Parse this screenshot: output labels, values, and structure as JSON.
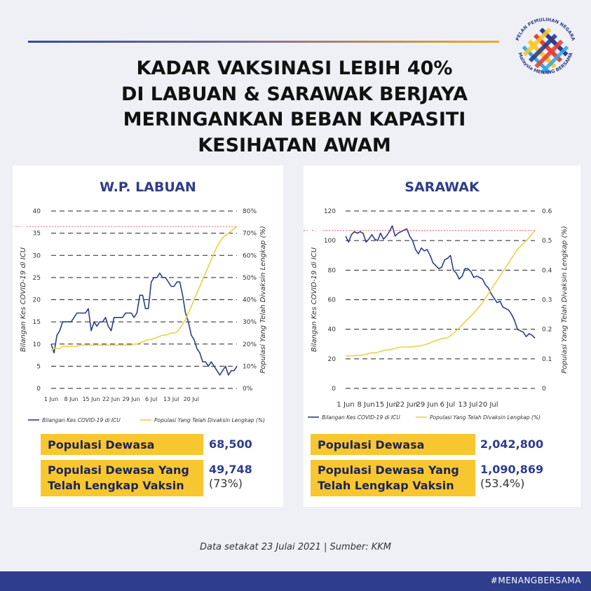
{
  "title_lines": [
    "KADAR VAKSINASI LEBIH 40%",
    "DI LABUAN & SARAWAK BERJAYA",
    "MERINGANKAN BEBAN KAPASITI",
    "KESIHATAN AWAM"
  ],
  "logo": {
    "text_top": "PELAN PEMULIHAN NEGARA",
    "text_bottom": "Malaysia MENANG BERSAMA",
    "colors": [
      "#2e3d8c",
      "#e8403a",
      "#f8c72f",
      "#37a9e1"
    ]
  },
  "colors": {
    "blue": "#2e3d8c",
    "yellow": "#f8c72f",
    "line_yellow": "#e9d24a",
    "accent_line": "#f0a92a"
  },
  "footer": "Data setakat 23 Julai 2021  |  Sumber: KKM",
  "hashtag": "#MENANGBERSAMA",
  "left": {
    "title": "W.P. LABUAN",
    "stats": [
      {
        "label": "Populasi Dewasa",
        "value": "68,500",
        "pct": ""
      },
      {
        "label_lines": [
          "Populasi Dewasa Yang",
          "Telah Lengkap Vaksin"
        ],
        "value": "49,748",
        "pct": "(73%)"
      }
    ]
  },
  "right": {
    "title": "SARAWAK",
    "stats": [
      {
        "label": "Populasi Dewasa",
        "value": "2,042,800",
        "pct": ""
      },
      {
        "label_lines": [
          "Populasi Dewasa Yang",
          "Telah Lengkap Vaksin"
        ],
        "value": "1,090,869",
        "pct": "(53.4%)"
      }
    ]
  },
  "chart_data": [
    {
      "type": "line",
      "title": "W.P. LABUAN",
      "x_ticks": [
        "1 Jun",
        "8 Jun",
        "15 Jun",
        "22 Jun",
        "29 Jun",
        "6 Jul",
        "13 Jul",
        "20 Jul"
      ],
      "ylabel": "Bilangan Kes COVID-19 di ICU",
      "y2label": "Populasi Yang Telah Divaksin Lengkap (%)",
      "ylim": [
        0,
        40
      ],
      "y_ticks": [
        "0",
        "5",
        "10",
        "15",
        "20",
        "25",
        "30",
        "35",
        "40"
      ],
      "y2lim": [
        0,
        80
      ],
      "y2_ticks": [
        "0%",
        "10%",
        "20%",
        "30%",
        "40%",
        "50%",
        "60%",
        "70%",
        "80%"
      ],
      "callout": "73%",
      "grid": true,
      "legend_position": "bottom",
      "series": [
        {
          "name": "Bilangan Kes COVID-19 di ICU",
          "axis": "left",
          "color": "#2e3d8c",
          "values": [
            10,
            8,
            12,
            13,
            15,
            15,
            15,
            15,
            16,
            17,
            17,
            17,
            17,
            18,
            13,
            15,
            14,
            15,
            15,
            16,
            14,
            13,
            16,
            16,
            16,
            16,
            17,
            17,
            17,
            16,
            17,
            21,
            21,
            18,
            18,
            24,
            25,
            25,
            26,
            25,
            25,
            24,
            23,
            23,
            24,
            24,
            21,
            17,
            15,
            12,
            11,
            9,
            8,
            6,
            6,
            5,
            6,
            5,
            4,
            3,
            4,
            5,
            3,
            4,
            4,
            5
          ]
        },
        {
          "name": "Populasi Yang Telah Divaksin Lengkap (%)",
          "axis": "right",
          "color": "#e9d24a",
          "values": [
            17,
            18,
            18,
            18,
            19,
            19,
            19,
            19,
            19,
            19,
            19.5,
            19.5,
            19.5,
            19.5,
            19.5,
            19.5,
            19.5,
            19.5,
            19.5,
            19.5,
            19.5,
            19.5,
            19.5,
            19.5,
            19.5,
            19.5,
            19.5,
            19.5,
            19.5,
            20,
            20,
            20.5,
            21,
            21.5,
            22,
            22,
            22.5,
            23,
            23.5,
            24,
            24,
            24.5,
            25,
            25,
            25.5,
            27,
            29,
            31,
            34,
            37,
            40,
            43,
            46,
            49,
            52,
            55,
            58,
            61,
            64,
            66,
            68,
            69,
            70,
            71,
            72,
            73
          ]
        }
      ]
    },
    {
      "type": "line",
      "title": "SARAWAK",
      "x_ticks": [
        "1 Jun",
        "8 Jun",
        "15 Jun",
        "22 Jun",
        "29 Jun",
        "6 Jul",
        "13 Jul",
        "20 Jul"
      ],
      "ylabel": "Bilangan Kes COVID-19 di ICU",
      "y2label": "Populasi Yang Telah Divaksin Lengkap (%)",
      "ylim": [
        0,
        120
      ],
      "y_ticks": [
        "0",
        "20",
        "40",
        "60",
        "80",
        "100",
        "120"
      ],
      "y2lim": [
        0,
        0.6
      ],
      "y2_ticks": [
        "0",
        "0.1",
        "0.2",
        "0.3",
        "0.4",
        "0.5",
        "0.6"
      ],
      "callout": "53.4%",
      "grid": true,
      "legend_position": "bottom",
      "series": [
        {
          "name": "Bilangan Kes COVID-19 di ICU",
          "axis": "left",
          "color": "#2e3d8c",
          "values": [
            103,
            99,
            104,
            106,
            105,
            106,
            105,
            99,
            101,
            104,
            101,
            100,
            105,
            101,
            103,
            106,
            110,
            103,
            105,
            106,
            107,
            108,
            103,
            100,
            94,
            91,
            95,
            93,
            94,
            90,
            85,
            83,
            81,
            82,
            87,
            88,
            90,
            80,
            78,
            74,
            76,
            81,
            81,
            79,
            75,
            76,
            75,
            74,
            70,
            68,
            64,
            61,
            58,
            59,
            55,
            54,
            53,
            50,
            46,
            40,
            39,
            38,
            35,
            37,
            36,
            34
          ]
        },
        {
          "name": "Populasi Yang Telah Divaksin Lengkap (%)",
          "axis": "right",
          "color": "#e9d24a",
          "values": [
            0.11,
            0.11,
            0.11,
            0.11,
            0.112,
            0.112,
            0.113,
            0.115,
            0.118,
            0.12,
            0.12,
            0.122,
            0.125,
            0.128,
            0.13,
            0.13,
            0.133,
            0.135,
            0.138,
            0.14,
            0.14,
            0.14,
            0.14,
            0.141,
            0.142,
            0.143,
            0.145,
            0.147,
            0.15,
            0.154,
            0.158,
            0.162,
            0.165,
            0.168,
            0.17,
            0.172,
            0.178,
            0.185,
            0.195,
            0.205,
            0.215,
            0.225,
            0.235,
            0.245,
            0.255,
            0.266,
            0.278,
            0.29,
            0.305,
            0.32,
            0.335,
            0.35,
            0.365,
            0.38,
            0.395,
            0.41,
            0.425,
            0.44,
            0.455,
            0.47,
            0.48,
            0.49,
            0.5,
            0.51,
            0.522,
            0.534
          ]
        }
      ]
    }
  ]
}
